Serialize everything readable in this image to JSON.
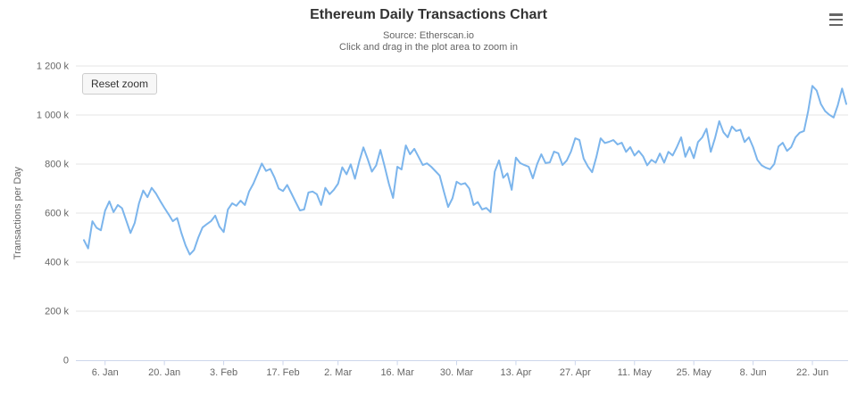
{
  "header": {
    "title": "Ethereum Daily Transactions Chart",
    "subtitle_line1": "Source: Etherscan.io",
    "subtitle_line2": "Click and drag in the plot area to zoom in"
  },
  "toolbar": {
    "context_menu_icon": "hamburger-icon"
  },
  "buttons": {
    "reset_zoom_label": "Reset zoom"
  },
  "colors": {
    "series_line": "#7cb5ec",
    "gridline": "#e6e6e6",
    "axis_line": "#ccd6eb",
    "tick_label": "#666666",
    "title_text": "#333333",
    "subtitle_text": "#666666",
    "button_bg": "#f7f7f7",
    "button_border": "#cccccc"
  },
  "chart_data": {
    "type": "line",
    "title": "Ethereum Daily Transactions Chart",
    "subtitle": [
      "Source: Etherscan.io",
      "Click and drag in the plot area to zoom in"
    ],
    "xlabel": "",
    "ylabel": "Transactions per Day",
    "ylim": [
      0,
      1200000
    ],
    "grid": "horizontal-only",
    "legend": "none",
    "x_axis_type": "datetime-daily",
    "x_range": "Jan 1 - Jun 30",
    "x_tick_labels": [
      "6. Jan",
      "20. Jan",
      "3. Feb",
      "17. Feb",
      "2. Mar",
      "16. Mar",
      "30. Mar",
      "13. Apr",
      "27. Apr",
      "11. May",
      "25. May",
      "8. Jun",
      "22. Jun"
    ],
    "x_tick_day_index": [
      5,
      19,
      33,
      47,
      60,
      74,
      88,
      102,
      116,
      130,
      144,
      158,
      172
    ],
    "y_tick_labels": [
      "0",
      "200 k",
      "400 k",
      "600 k",
      "800 k",
      "1 000 k",
      "1 200 k"
    ],
    "y_tick_values": [
      0,
      200000,
      400000,
      600000,
      800000,
      1000000,
      1200000
    ],
    "series": [
      {
        "name": "Transactions per Day",
        "unit_of_values": "thousands",
        "values_thousands": [
          490,
          456,
          567,
          540,
          530,
          610,
          648,
          604,
          633,
          620,
          570,
          519,
          560,
          640,
          692,
          665,
          703,
          680,
          650,
          622,
          595,
          567,
          580,
          520,
          468,
          431,
          450,
          500,
          541,
          555,
          567,
          590,
          545,
          523,
          615,
          640,
          630,
          651,
          633,
          688,
          720,
          760,
          802,
          772,
          780,
          745,
          700,
          690,
          715,
          680,
          645,
          611,
          615,
          684,
          688,
          677,
          633,
          703,
          677,
          695,
          720,
          787,
          758,
          799,
          740,
          810,
          868,
          820,
          769,
          795,
          858,
          790,
          720,
          662,
          789,
          778,
          876,
          840,
          862,
          830,
          796,
          803,
          789,
          771,
          753,
          687,
          625,
          660,
          728,
          717,
          722,
          700,
          633,
          645,
          615,
          621,
          604,
          769,
          815,
          744,
          762,
          695,
          826,
          804,
          796,
          789,
          742,
          800,
          840,
          804,
          807,
          851,
          844,
          796,
          815,
          851,
          905,
          898,
          822,
          790,
          767,
          830,
          905,
          886,
          891,
          898,
          880,
          887,
          850,
          869,
          835,
          854,
          832,
          795,
          817,
          806,
          843,
          806,
          850,
          835,
          869,
          909,
          830,
          869,
          824,
          890,
          909,
          944,
          850,
          905,
          975,
          930,
          909,
          953,
          935,
          940,
          890,
          909,
          869,
          817,
          795,
          785,
          779,
          800,
          872,
          887,
          854,
          869,
          909,
          928,
          935,
          1016,
          1119,
          1100,
          1045,
          1016,
          1001,
          990,
          1040,
          1108,
          1045
        ]
      }
    ]
  }
}
